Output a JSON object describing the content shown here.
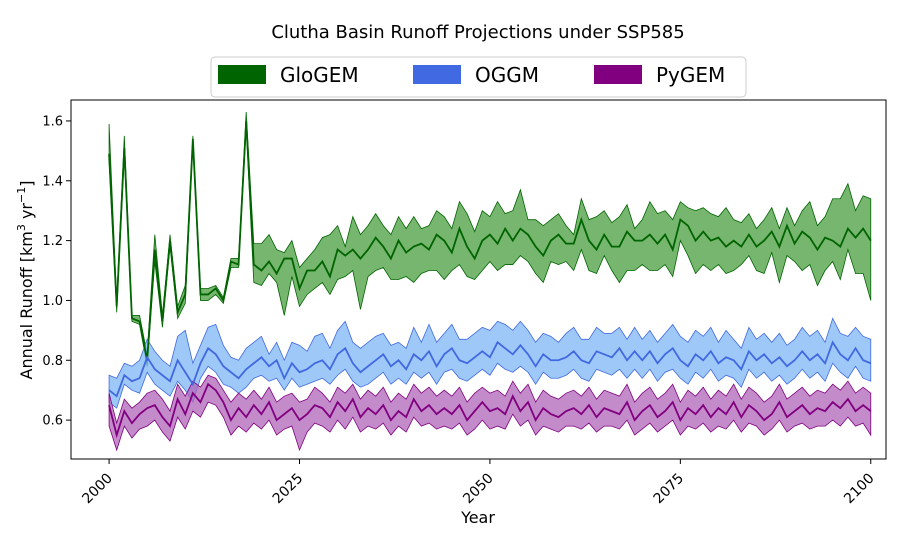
{
  "chart_data": {
    "type": "line",
    "title": "Clutha Basin Runoff Projections under SSP585",
    "xlabel": "Year",
    "ylabel": "Annual Runoff [km³ yr⁻¹]",
    "ylabel_parts": {
      "main": "Annual Runoff [km",
      "sup1": "3",
      "mid": " yr",
      "sup2": "−1",
      "end": "]"
    },
    "xlim": [
      1995,
      2102
    ],
    "ylim": [
      0.47,
      1.67
    ],
    "xticks": [
      2000,
      2025,
      2050,
      2075,
      2100
    ],
    "xtick_labels": [
      "2000",
      "2025",
      "2050",
      "2075",
      "2100"
    ],
    "yticks": [
      0.6,
      0.8,
      1.0,
      1.2,
      1.4,
      1.6
    ],
    "ytick_labels": [
      "0.6",
      "0.8",
      "1.0",
      "1.2",
      "1.4",
      "1.6"
    ],
    "legend_position": "top-center, outside plot",
    "grid": false,
    "start_year": 2000,
    "series": [
      {
        "name": "GloGEM",
        "color": "#006400",
        "band_color": "#4a9e3f",
        "mean": [
          1.49,
          0.98,
          1.51,
          0.94,
          0.93,
          0.8,
          1.17,
          0.93,
          1.2,
          0.96,
          1.02,
          1.54,
          1.02,
          1.02,
          1.04,
          1.0,
          1.13,
          1.12,
          1.6,
          1.12,
          1.1,
          1.13,
          1.09,
          1.14,
          1.14,
          1.04,
          1.1,
          1.1,
          1.13,
          1.08,
          1.17,
          1.15,
          1.17,
          1.14,
          1.17,
          1.21,
          1.18,
          1.14,
          1.2,
          1.16,
          1.18,
          1.19,
          1.17,
          1.22,
          1.2,
          1.16,
          1.24,
          1.18,
          1.14,
          1.2,
          1.22,
          1.19,
          1.24,
          1.2,
          1.24,
          1.22,
          1.18,
          1.15,
          1.2,
          1.22,
          1.19,
          1.19,
          1.27,
          1.2,
          1.17,
          1.22,
          1.18,
          1.18,
          1.23,
          1.2,
          1.2,
          1.22,
          1.19,
          1.22,
          1.17,
          1.27,
          1.25,
          1.2,
          1.23,
          1.2,
          1.21,
          1.18,
          1.2,
          1.18,
          1.22,
          1.18,
          1.2,
          1.23,
          1.18,
          1.25,
          1.19,
          1.23,
          1.21,
          1.17,
          1.21,
          1.2,
          1.18,
          1.24,
          1.21,
          1.24,
          1.2
        ],
        "upper": [
          1.59,
          1.0,
          1.55,
          0.95,
          0.95,
          0.82,
          1.22,
          0.95,
          1.22,
          0.98,
          1.05,
          1.55,
          1.04,
          1.04,
          1.05,
          1.01,
          1.14,
          1.14,
          1.63,
          1.19,
          1.19,
          1.22,
          1.17,
          1.16,
          1.2,
          1.11,
          1.14,
          1.17,
          1.21,
          1.22,
          1.25,
          1.18,
          1.28,
          1.22,
          1.25,
          1.29,
          1.25,
          1.22,
          1.28,
          1.24,
          1.28,
          1.24,
          1.25,
          1.3,
          1.28,
          1.24,
          1.33,
          1.29,
          1.23,
          1.3,
          1.28,
          1.33,
          1.29,
          1.3,
          1.37,
          1.27,
          1.27,
          1.25,
          1.27,
          1.29,
          1.25,
          1.22,
          1.34,
          1.27,
          1.28,
          1.3,
          1.26,
          1.28,
          1.32,
          1.24,
          1.27,
          1.33,
          1.29,
          1.3,
          1.27,
          1.33,
          1.31,
          1.3,
          1.31,
          1.29,
          1.28,
          1.31,
          1.27,
          1.26,
          1.29,
          1.24,
          1.27,
          1.31,
          1.24,
          1.31,
          1.25,
          1.3,
          1.33,
          1.25,
          1.28,
          1.34,
          1.34,
          1.39,
          1.3,
          1.35,
          1.34
        ],
        "lower": [
          1.47,
          0.96,
          1.49,
          0.93,
          0.92,
          0.78,
          1.13,
          0.91,
          1.18,
          0.94,
          0.99,
          1.52,
          1.0,
          1.0,
          1.02,
          0.99,
          1.11,
          1.11,
          1.58,
          1.06,
          1.05,
          1.09,
          1.06,
          0.95,
          1.08,
          0.98,
          1.02,
          1.04,
          1.06,
          1.02,
          1.07,
          1.08,
          1.1,
          0.97,
          1.08,
          1.1,
          1.11,
          1.07,
          1.07,
          1.08,
          1.06,
          1.09,
          1.1,
          1.1,
          1.07,
          1.1,
          1.12,
          1.08,
          1.07,
          1.1,
          1.13,
          1.1,
          1.12,
          1.12,
          1.15,
          1.13,
          1.09,
          1.06,
          1.13,
          1.12,
          1.13,
          1.1,
          1.17,
          1.1,
          1.09,
          1.15,
          1.1,
          1.06,
          1.1,
          1.1,
          1.12,
          1.1,
          1.1,
          1.12,
          1.08,
          1.2,
          1.15,
          1.09,
          1.12,
          1.1,
          1.12,
          1.09,
          1.1,
          1.12,
          1.15,
          1.1,
          1.09,
          1.16,
          1.06,
          1.15,
          1.13,
          1.1,
          1.12,
          1.05,
          1.1,
          1.13,
          1.07,
          1.17,
          1.09,
          1.09,
          1.0
        ]
      },
      {
        "name": "OGGM",
        "color": "#4169E1",
        "band_color": "#7eb6f5",
        "mean": [
          0.7,
          0.68,
          0.75,
          0.73,
          0.74,
          0.81,
          0.77,
          0.75,
          0.73,
          0.8,
          0.76,
          0.72,
          0.79,
          0.84,
          0.82,
          0.78,
          0.76,
          0.74,
          0.77,
          0.79,
          0.81,
          0.78,
          0.8,
          0.74,
          0.79,
          0.76,
          0.77,
          0.79,
          0.8,
          0.77,
          0.82,
          0.84,
          0.79,
          0.76,
          0.78,
          0.8,
          0.82,
          0.78,
          0.8,
          0.77,
          0.82,
          0.8,
          0.83,
          0.78,
          0.82,
          0.84,
          0.8,
          0.79,
          0.81,
          0.83,
          0.81,
          0.86,
          0.84,
          0.82,
          0.85,
          0.82,
          0.78,
          0.82,
          0.8,
          0.8,
          0.81,
          0.83,
          0.8,
          0.79,
          0.83,
          0.82,
          0.81,
          0.84,
          0.8,
          0.83,
          0.8,
          0.83,
          0.79,
          0.82,
          0.84,
          0.8,
          0.78,
          0.82,
          0.8,
          0.83,
          0.79,
          0.81,
          0.8,
          0.77,
          0.83,
          0.8,
          0.82,
          0.79,
          0.81,
          0.78,
          0.8,
          0.83,
          0.8,
          0.82,
          0.79,
          0.86,
          0.82,
          0.8,
          0.84,
          0.8,
          0.79
        ],
        "upper": [
          0.75,
          0.74,
          0.79,
          0.78,
          0.8,
          0.87,
          0.83,
          0.8,
          0.78,
          0.88,
          0.9,
          0.79,
          0.85,
          0.91,
          0.92,
          0.85,
          0.81,
          0.8,
          0.84,
          0.86,
          0.88,
          0.82,
          0.86,
          0.8,
          0.86,
          0.85,
          0.83,
          0.88,
          0.89,
          0.84,
          0.9,
          0.93,
          0.86,
          0.84,
          0.86,
          0.88,
          0.89,
          0.85,
          0.86,
          0.84,
          0.91,
          0.86,
          0.92,
          0.86,
          0.89,
          0.92,
          0.87,
          0.87,
          0.89,
          0.91,
          0.9,
          0.93,
          0.92,
          0.9,
          0.93,
          0.9,
          0.86,
          0.89,
          0.88,
          0.86,
          0.89,
          0.91,
          0.87,
          0.87,
          0.91,
          0.89,
          0.89,
          0.91,
          0.87,
          0.91,
          0.87,
          0.9,
          0.86,
          0.89,
          0.92,
          0.88,
          0.86,
          0.9,
          0.88,
          0.91,
          0.86,
          0.9,
          0.87,
          0.84,
          0.91,
          0.87,
          0.89,
          0.86,
          0.89,
          0.85,
          0.87,
          0.91,
          0.88,
          0.9,
          0.86,
          0.94,
          0.89,
          0.88,
          0.91,
          0.88,
          0.87
        ],
        "lower": [
          0.66,
          0.64,
          0.72,
          0.7,
          0.69,
          0.76,
          0.72,
          0.7,
          0.68,
          0.73,
          0.7,
          0.66,
          0.74,
          0.78,
          0.76,
          0.72,
          0.71,
          0.69,
          0.71,
          0.74,
          0.75,
          0.73,
          0.74,
          0.7,
          0.74,
          0.71,
          0.72,
          0.73,
          0.74,
          0.72,
          0.75,
          0.77,
          0.73,
          0.71,
          0.72,
          0.74,
          0.76,
          0.72,
          0.74,
          0.72,
          0.76,
          0.74,
          0.76,
          0.72,
          0.76,
          0.77,
          0.74,
          0.73,
          0.75,
          0.77,
          0.75,
          0.79,
          0.77,
          0.76,
          0.78,
          0.76,
          0.72,
          0.76,
          0.74,
          0.74,
          0.75,
          0.77,
          0.74,
          0.73,
          0.77,
          0.76,
          0.75,
          0.77,
          0.74,
          0.77,
          0.74,
          0.77,
          0.73,
          0.76,
          0.77,
          0.74,
          0.72,
          0.76,
          0.74,
          0.77,
          0.73,
          0.75,
          0.74,
          0.71,
          0.77,
          0.74,
          0.76,
          0.73,
          0.75,
          0.72,
          0.74,
          0.77,
          0.74,
          0.76,
          0.73,
          0.79,
          0.76,
          0.74,
          0.78,
          0.74,
          0.73
        ]
      },
      {
        "name": "PyGEM",
        "color": "#800080",
        "band_color": "#b064b8",
        "mean": [
          0.65,
          0.55,
          0.63,
          0.59,
          0.62,
          0.64,
          0.65,
          0.61,
          0.58,
          0.67,
          0.62,
          0.69,
          0.66,
          0.72,
          0.7,
          0.66,
          0.6,
          0.64,
          0.61,
          0.65,
          0.62,
          0.66,
          0.6,
          0.62,
          0.64,
          0.6,
          0.62,
          0.65,
          0.64,
          0.61,
          0.66,
          0.63,
          0.67,
          0.61,
          0.64,
          0.62,
          0.65,
          0.6,
          0.63,
          0.61,
          0.67,
          0.63,
          0.65,
          0.62,
          0.64,
          0.62,
          0.65,
          0.6,
          0.63,
          0.66,
          0.63,
          0.64,
          0.62,
          0.68,
          0.63,
          0.66,
          0.6,
          0.64,
          0.62,
          0.61,
          0.63,
          0.64,
          0.62,
          0.65,
          0.61,
          0.64,
          0.63,
          0.62,
          0.66,
          0.6,
          0.63,
          0.65,
          0.61,
          0.63,
          0.66,
          0.6,
          0.64,
          0.62,
          0.65,
          0.61,
          0.64,
          0.62,
          0.66,
          0.61,
          0.65,
          0.63,
          0.6,
          0.62,
          0.66,
          0.61,
          0.63,
          0.65,
          0.62,
          0.64,
          0.63,
          0.66,
          0.64,
          0.67,
          0.63,
          0.65,
          0.63
        ],
        "upper": [
          0.69,
          0.59,
          0.67,
          0.64,
          0.66,
          0.69,
          0.7,
          0.67,
          0.63,
          0.72,
          0.68,
          0.73,
          0.71,
          0.75,
          0.74,
          0.7,
          0.66,
          0.69,
          0.67,
          0.7,
          0.67,
          0.71,
          0.66,
          0.68,
          0.69,
          0.66,
          0.67,
          0.71,
          0.69,
          0.66,
          0.71,
          0.69,
          0.72,
          0.67,
          0.7,
          0.68,
          0.71,
          0.66,
          0.69,
          0.67,
          0.72,
          0.69,
          0.71,
          0.68,
          0.7,
          0.68,
          0.71,
          0.66,
          0.69,
          0.71,
          0.69,
          0.7,
          0.68,
          0.73,
          0.69,
          0.72,
          0.66,
          0.7,
          0.68,
          0.67,
          0.69,
          0.7,
          0.68,
          0.71,
          0.67,
          0.7,
          0.69,
          0.68,
          0.72,
          0.66,
          0.69,
          0.71,
          0.67,
          0.69,
          0.72,
          0.66,
          0.7,
          0.68,
          0.71,
          0.67,
          0.7,
          0.68,
          0.72,
          0.67,
          0.71,
          0.69,
          0.66,
          0.68,
          0.72,
          0.67,
          0.69,
          0.71,
          0.68,
          0.7,
          0.69,
          0.72,
          0.7,
          0.73,
          0.69,
          0.71,
          0.69
        ],
        "lower": [
          0.58,
          0.5,
          0.58,
          0.54,
          0.57,
          0.58,
          0.6,
          0.56,
          0.53,
          0.61,
          0.57,
          0.63,
          0.61,
          0.66,
          0.65,
          0.61,
          0.55,
          0.58,
          0.56,
          0.59,
          0.57,
          0.6,
          0.55,
          0.57,
          0.58,
          0.5,
          0.56,
          0.59,
          0.58,
          0.56,
          0.6,
          0.57,
          0.61,
          0.56,
          0.58,
          0.57,
          0.59,
          0.55,
          0.58,
          0.56,
          0.61,
          0.58,
          0.59,
          0.57,
          0.58,
          0.57,
          0.59,
          0.55,
          0.57,
          0.6,
          0.57,
          0.58,
          0.57,
          0.62,
          0.58,
          0.6,
          0.55,
          0.58,
          0.57,
          0.56,
          0.58,
          0.58,
          0.57,
          0.59,
          0.56,
          0.58,
          0.58,
          0.57,
          0.6,
          0.55,
          0.57,
          0.59,
          0.56,
          0.58,
          0.6,
          0.55,
          0.58,
          0.57,
          0.59,
          0.56,
          0.58,
          0.57,
          0.6,
          0.56,
          0.59,
          0.58,
          0.55,
          0.57,
          0.6,
          0.56,
          0.58,
          0.59,
          0.57,
          0.58,
          0.58,
          0.6,
          0.58,
          0.61,
          0.58,
          0.59,
          0.55
        ]
      }
    ]
  }
}
